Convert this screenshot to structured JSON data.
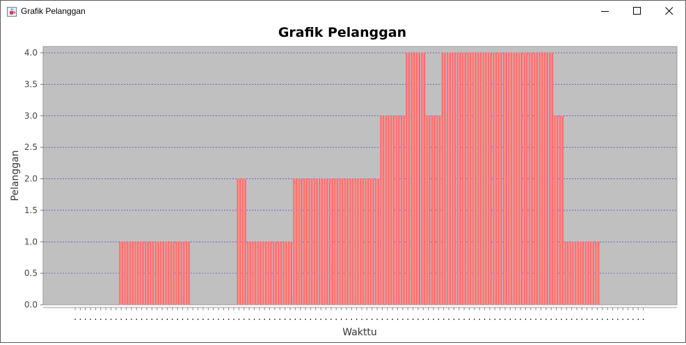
{
  "window": {
    "title": "Grafik Pelanggan",
    "icons": {
      "app": "java-cup-icon",
      "minimize": "minimize-icon",
      "maximize": "maximize-icon",
      "close": "close-icon"
    }
  },
  "colors": {
    "bar": "#ff6b6b",
    "bar_highlight": "#ffb0b0",
    "plot_background": "#c0c0c0",
    "grid": "#3030cc"
  },
  "chart_data": {
    "type": "bar",
    "title": "Grafik Pelanggan",
    "xlabel": "Wakttu",
    "ylabel": "Pelanggan",
    "ylim": [
      0,
      4.1
    ],
    "yticks": [
      "0.0",
      "0.5",
      "1.0",
      "1.5",
      "2.0",
      "2.5",
      "3.0",
      "3.5",
      "4.0"
    ],
    "grid": true,
    "legend": "none",
    "values": [
      0,
      0,
      0,
      0,
      0,
      0,
      0,
      0,
      0,
      1,
      1,
      1,
      1,
      1,
      1,
      1,
      1,
      1,
      1,
      1,
      1,
      1,
      1,
      0,
      0,
      0,
      0,
      0,
      0,
      0,
      0,
      0,
      2,
      2,
      1,
      1,
      1,
      1,
      1,
      1,
      1,
      1,
      1,
      2,
      2,
      2,
      2,
      2,
      2,
      2,
      2,
      2,
      2,
      2,
      2,
      2,
      2,
      2,
      2,
      2,
      3,
      3,
      3,
      3,
      3,
      4,
      4,
      4,
      4,
      3,
      3,
      3,
      4,
      4,
      4,
      4,
      4,
      4,
      4,
      4,
      4,
      4,
      4,
      4,
      4,
      4,
      4,
      4,
      4,
      4,
      4,
      4,
      4,
      4,
      3,
      3,
      1,
      1,
      1,
      1,
      1,
      1,
      1,
      0,
      0,
      0,
      0,
      0,
      0,
      0,
      0,
      0
    ]
  }
}
